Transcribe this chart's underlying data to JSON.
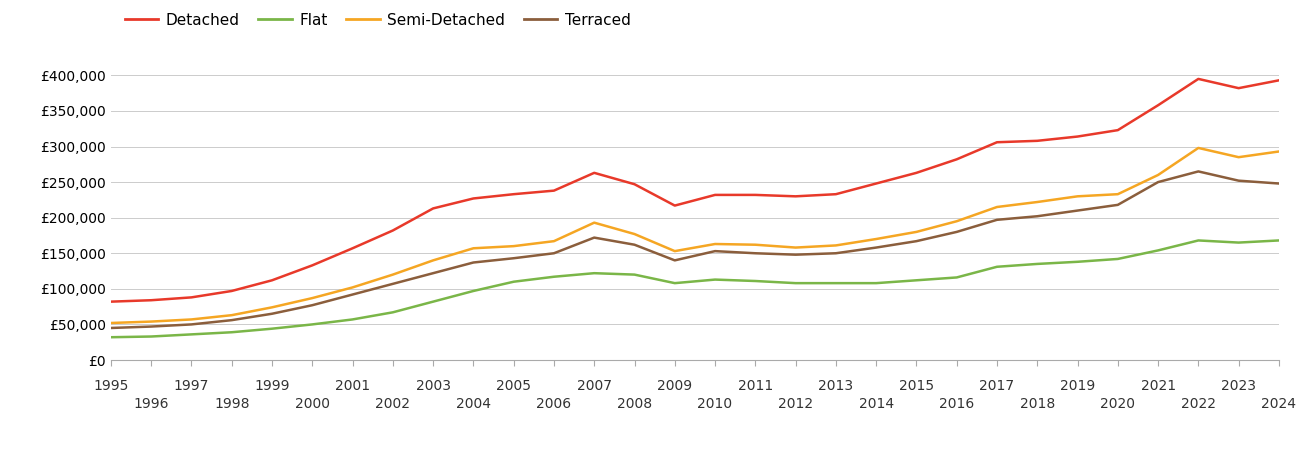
{
  "years": [
    1995,
    1996,
    1997,
    1998,
    1999,
    2000,
    2001,
    2002,
    2003,
    2004,
    2005,
    2006,
    2007,
    2008,
    2009,
    2010,
    2011,
    2012,
    2013,
    2014,
    2015,
    2016,
    2017,
    2018,
    2019,
    2020,
    2021,
    2022,
    2023,
    2024
  ],
  "detached": [
    82000,
    84000,
    88000,
    97000,
    112000,
    133000,
    157000,
    182000,
    213000,
    227000,
    233000,
    238000,
    263000,
    247000,
    217000,
    232000,
    232000,
    230000,
    233000,
    248000,
    263000,
    282000,
    306000,
    308000,
    314000,
    323000,
    358000,
    395000,
    382000,
    393000
  ],
  "flat": [
    32000,
    33000,
    36000,
    39000,
    44000,
    50000,
    57000,
    67000,
    82000,
    97000,
    110000,
    117000,
    122000,
    120000,
    108000,
    113000,
    111000,
    108000,
    108000,
    108000,
    112000,
    116000,
    131000,
    135000,
    138000,
    142000,
    154000,
    168000,
    165000,
    168000
  ],
  "semi_detached": [
    52000,
    54000,
    57000,
    63000,
    74000,
    87000,
    102000,
    120000,
    140000,
    157000,
    160000,
    167000,
    193000,
    177000,
    153000,
    163000,
    162000,
    158000,
    161000,
    170000,
    180000,
    195000,
    215000,
    222000,
    230000,
    233000,
    260000,
    298000,
    285000,
    293000
  ],
  "terraced": [
    45000,
    47000,
    50000,
    56000,
    65000,
    77000,
    92000,
    107000,
    122000,
    137000,
    143000,
    150000,
    172000,
    162000,
    140000,
    153000,
    150000,
    148000,
    150000,
    158000,
    167000,
    180000,
    197000,
    202000,
    210000,
    218000,
    250000,
    265000,
    252000,
    248000
  ],
  "series_colors": {
    "detached": "#e8392a",
    "flat": "#7ab648",
    "semi_detached": "#f5a623",
    "terraced": "#8b5e3c"
  },
  "series_labels": {
    "detached": "Detached",
    "flat": "Flat",
    "semi_detached": "Semi-Detached",
    "terraced": "Terraced"
  },
  "ylim": [
    0,
    430000
  ],
  "yticks": [
    0,
    50000,
    100000,
    150000,
    200000,
    250000,
    300000,
    350000,
    400000
  ],
  "xlim": [
    1995,
    2024
  ],
  "background_color": "#ffffff",
  "grid_color": "#cccccc",
  "line_width": 1.8,
  "legend_fontsize": 11,
  "tick_fontsize": 10
}
